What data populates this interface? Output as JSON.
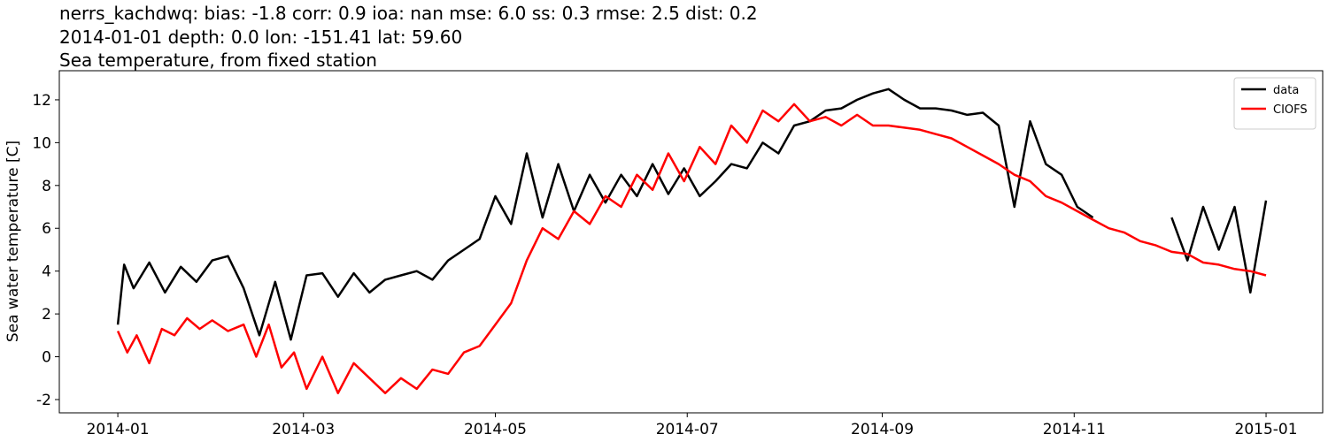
{
  "chart_data": {
    "type": "line",
    "title": "nerrs_kachdwq: bias: -1.8  corr: 0.9  ioa: nan  mse: 6.0  ss: 0.3  rmse: 2.5  dist: 0.2",
    "subtitle": "2014-01-01 depth: 0.0 lon: -151.41 lat: 59.60",
    "subtitle2": "Sea temperature, from fixed station",
    "ylabel": "Sea water temperature [C]",
    "xlim": [
      -18.6,
      383
    ],
    "xticks": [
      {
        "value": 0,
        "label": "2014-01"
      },
      {
        "value": 59,
        "label": "2014-03"
      },
      {
        "value": 120,
        "label": "2014-05"
      },
      {
        "value": 181,
        "label": "2014-07"
      },
      {
        "value": 243,
        "label": "2014-09"
      },
      {
        "value": 304,
        "label": "2014-11"
      },
      {
        "value": 365,
        "label": "2015-01"
      }
    ],
    "ylim": [
      -2.62,
      13.36
    ],
    "yticks": [
      -2,
      0,
      2,
      4,
      6,
      8,
      10,
      12
    ],
    "legend": "upper right",
    "series": [
      {
        "name": "data",
        "color": "#000000",
        "x": [
          0,
          2,
          5,
          10,
          15,
          20,
          25,
          30,
          35,
          40,
          45,
          50,
          55,
          60,
          65,
          70,
          75,
          80,
          85,
          90,
          95,
          100,
          105,
          110,
          115,
          120,
          125,
          130,
          135,
          140,
          145,
          150,
          155,
          160,
          165,
          170,
          175,
          180,
          185,
          190,
          195,
          200,
          205,
          210,
          215,
          220,
          225,
          230,
          235,
          240,
          245,
          250,
          255,
          260,
          265,
          270,
          275,
          280,
          285,
          290,
          295,
          300,
          305,
          310,
          312,
          335,
          340,
          345,
          350,
          355,
          360,
          365
        ],
        "values": [
          1.5,
          4.3,
          3.2,
          4.4,
          3.0,
          4.2,
          3.5,
          4.5,
          4.7,
          3.2,
          1.0,
          3.5,
          0.8,
          3.8,
          3.9,
          2.8,
          3.9,
          3.0,
          3.6,
          3.8,
          4.0,
          3.6,
          4.5,
          5.0,
          5.5,
          7.5,
          6.2,
          9.5,
          6.5,
          9.0,
          6.8,
          8.5,
          7.2,
          8.5,
          7.5,
          9.0,
          7.6,
          8.8,
          7.5,
          8.2,
          9.0,
          8.8,
          10.0,
          9.5,
          10.8,
          11.0,
          11.5,
          11.6,
          12.0,
          12.3,
          12.5,
          12.0,
          11.6,
          11.6,
          11.5,
          11.3,
          11.4,
          10.8,
          7.0,
          11.0,
          9.0,
          8.5,
          7.0,
          6.5,
          null,
          6.5,
          4.5,
          7.0,
          5.0,
          7.0,
          3.0,
          7.3
        ]
      },
      {
        "name": "CIOFS",
        "color": "#ff0000",
        "x": [
          0,
          3,
          6,
          10,
          14,
          18,
          22,
          26,
          30,
          35,
          40,
          44,
          48,
          52,
          56,
          60,
          65,
          70,
          75,
          80,
          85,
          90,
          95,
          100,
          105,
          110,
          115,
          120,
          125,
          130,
          135,
          140,
          145,
          150,
          155,
          160,
          165,
          170,
          175,
          180,
          185,
          190,
          195,
          200,
          205,
          210,
          215,
          220,
          225,
          230,
          235,
          240,
          245,
          250,
          255,
          260,
          265,
          270,
          275,
          280,
          285,
          290,
          295,
          300,
          305,
          310,
          315,
          320,
          325,
          330,
          335,
          340,
          345,
          350,
          355,
          360,
          365
        ],
        "values": [
          1.2,
          0.2,
          1.0,
          -0.3,
          1.3,
          1.0,
          1.8,
          1.3,
          1.7,
          1.2,
          1.5,
          0.0,
          1.5,
          -0.5,
          0.2,
          -1.5,
          0.0,
          -1.7,
          -0.3,
          -1.0,
          -1.7,
          -1.0,
          -1.5,
          -0.6,
          -0.8,
          0.2,
          0.5,
          1.5,
          2.5,
          4.5,
          6.0,
          5.5,
          6.8,
          6.2,
          7.5,
          7.0,
          8.5,
          7.8,
          9.5,
          8.2,
          9.8,
          9.0,
          10.8,
          10.0,
          11.5,
          11.0,
          11.8,
          11.0,
          11.2,
          10.8,
          11.3,
          10.8,
          10.8,
          10.7,
          10.6,
          10.4,
          10.2,
          9.8,
          9.4,
          9.0,
          8.5,
          8.2,
          7.5,
          7.2,
          6.8,
          6.4,
          6.0,
          5.8,
          5.4,
          5.2,
          4.9,
          4.8,
          4.4,
          4.3,
          4.1,
          4.0,
          3.8
        ]
      }
    ]
  }
}
